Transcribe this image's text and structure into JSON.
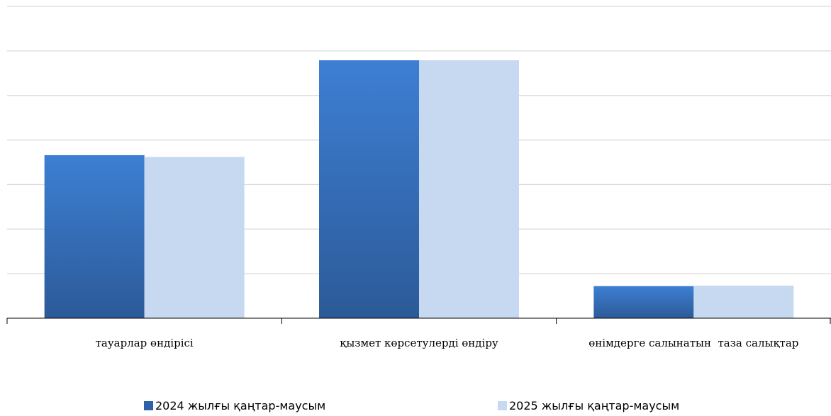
{
  "chart_data": {
    "type": "bar",
    "categories": [
      "тауарлар өндірісі",
      "қызмет көрсетулерді өндіру",
      "өнімдерге салынатын  таза салықтар"
    ],
    "series": [
      {
        "name": "2024 жылғы қаңтар-маусым",
        "values": [
          36.6,
          57.9,
          7.2
        ],
        "color": "#3a73c2"
      },
      {
        "name": "2025 жылғы қаңтар-маусым",
        "values": [
          36.2,
          57.9,
          7.3
        ],
        "color": "#c6d9f0"
      }
    ],
    "ylim": [
      0,
      70
    ],
    "y_gridlines": [
      10,
      20,
      30,
      40,
      50,
      60,
      70
    ],
    "y_ticks_labeled": false,
    "grid": true,
    "legend_position": "bottom"
  }
}
